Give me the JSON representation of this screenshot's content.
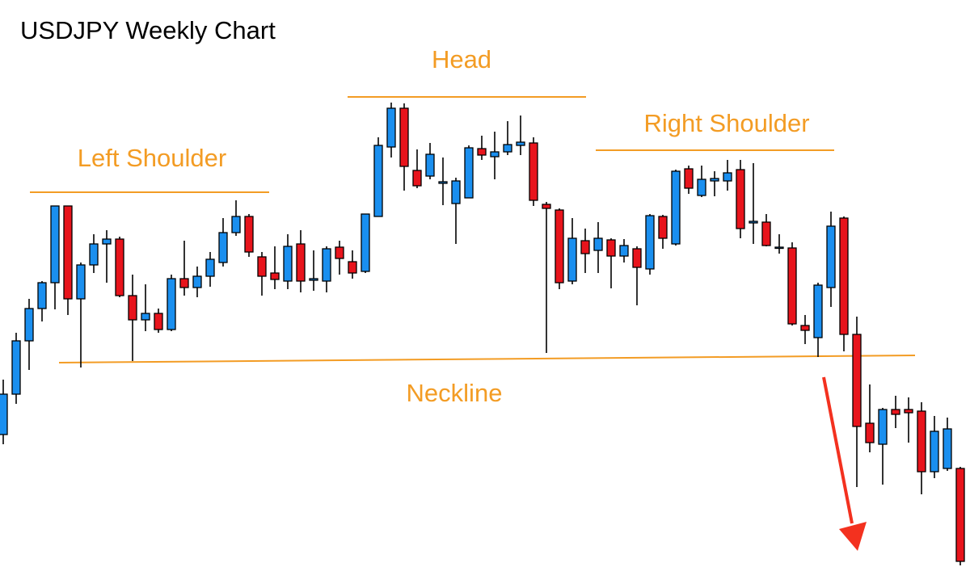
{
  "chart_data": {
    "type": "candlestick",
    "title": "USDJPY Weekly Chart",
    "annotations": [
      "Left Shoulder",
      "Head",
      "Right Shoulder",
      "Neckline"
    ],
    "up_color": "#1a8fef",
    "down_color": "#e8141c",
    "ylim": [
      0,
      702
    ],
    "categories": [
      null,
      null,
      null,
      null,
      null,
      null,
      null,
      null,
      null,
      null,
      null,
      null,
      null,
      null,
      null,
      null,
      null,
      null,
      null,
      null,
      null,
      null,
      null,
      null,
      null,
      null,
      null,
      null,
      null,
      null,
      null,
      null,
      null,
      null,
      null,
      null,
      null,
      null,
      null,
      null,
      null,
      null,
      null,
      null,
      null,
      null,
      null,
      null,
      null,
      null,
      null,
      null,
      null,
      null,
      null,
      null,
      null,
      null,
      null,
      null,
      null,
      null,
      null,
      null,
      null,
      null,
      null,
      null,
      null,
      null,
      null,
      null,
      null,
      null,
      null
    ],
    "open": [
      164,
      214,
      280,
      320,
      352,
      447,
      332,
      374,
      400,
      406,
      336,
      306,
      314,
      294,
      357,
      346,
      360,
      377,
      414,
      434,
      384,
      364,
      354,
      400,
      355,
      354,
      396,
      378,
      366,
      434,
      520,
      568,
      491,
      484,
      475,
      450,
      457,
      518,
      508,
      514,
      522,
      525,
      449,
      442,
      354,
      404,
      392,
      405,
      385,
      394,
      369,
      434,
      400,
      493,
      460,
      478,
      478,
      492,
      426,
      427,
      395,
      395,
      299,
      284,
      346,
      432,
      288,
      178,
      152,
      195,
      195,
      193,
      118,
      122,
      122
    ],
    "high": [
      232,
      290,
      332,
      354,
      447,
      447,
      377,
      412,
      417,
      409,
      362,
      350,
      320,
      362,
      404,
      372,
      390,
      432,
      454,
      437,
      390,
      397,
      412,
      417,
      392,
      397,
      404,
      392,
      437,
      532,
      575,
      574,
      517,
      525,
      507,
      482,
      522,
      534,
      539,
      552,
      559,
      532,
      452,
      444,
      432,
      419,
      427,
      407,
      406,
      397,
      437,
      436,
      492,
      497,
      497,
      490,
      504,
      504,
      500,
      437,
      412,
      402,
      312,
      352,
      440,
      434,
      310,
      226,
      197,
      212,
      210,
      204,
      187,
      185,
      124
    ],
    "low": [
      152,
      202,
      244,
      304,
      319,
      312,
      247,
      364,
      352,
      334,
      255,
      292,
      290,
      292,
      336,
      334,
      347,
      372,
      410,
      384,
      336,
      344,
      344,
      340,
      342,
      340,
      362,
      357,
      364,
      434,
      507,
      466,
      469,
      480,
      448,
      400,
      457,
      504,
      480,
      510,
      510,
      447,
      265,
      344,
      350,
      364,
      364,
      345,
      377,
      324,
      362,
      394,
      398,
      462,
      458,
      459,
      466,
      407,
      400,
      397,
      388,
      299,
      276,
      260,
      322,
      267,
      99,
      142,
      102,
      172,
      154,
      90,
      110,
      119,
      2
    ],
    "close": [
      214,
      280,
      320,
      352,
      447,
      332,
      374,
      400,
      406,
      336,
      306,
      314,
      294,
      357,
      346,
      360,
      381,
      414,
      434,
      390,
      360,
      356,
      397,
      354,
      357,
      394,
      382,
      364,
      437,
      522,
      568,
      496,
      472,
      511,
      477,
      478,
      519,
      510,
      514,
      523,
      526,
      454,
      444,
      352,
      407,
      388,
      407,
      385,
      398,
      371,
      435,
      407,
      490,
      469,
      480,
      481,
      488,
      419,
      428,
      398,
      396,
      301,
      293,
      349,
      422,
      288,
      174,
      154,
      195,
      189,
      191,
      118,
      168,
      171,
      7
    ]
  }
}
